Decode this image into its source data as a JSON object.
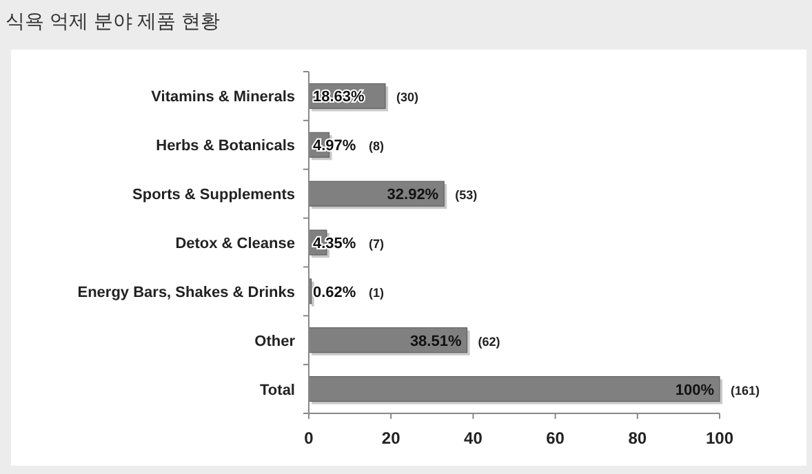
{
  "chart_data": {
    "type": "bar",
    "orientation": "horizontal",
    "title": "식욕 억제 분야 제품 현황",
    "categories": [
      "Vitamins & Minerals",
      "Herbs & Botanicals",
      "Sports & Supplements",
      "Detox & Cleanse",
      "Energy Bars, Shakes & Drinks",
      "Other",
      "Total"
    ],
    "values": [
      18.63,
      4.97,
      32.92,
      4.35,
      0.62,
      38.51,
      100
    ],
    "value_labels": [
      "18.63%",
      "4.97%",
      "32.92%",
      "4.35%",
      "0.62%",
      "38.51%",
      "100%"
    ],
    "color": "#808080",
    "xlim": [
      0,
      100
    ],
    "xticks": [
      0,
      20,
      40,
      60,
      80,
      100
    ],
    "grid": false,
    "annotations": [
      "(30)",
      "(8)",
      "(53)",
      "(7)",
      "(1)",
      "(62)",
      "(161)"
    ]
  }
}
